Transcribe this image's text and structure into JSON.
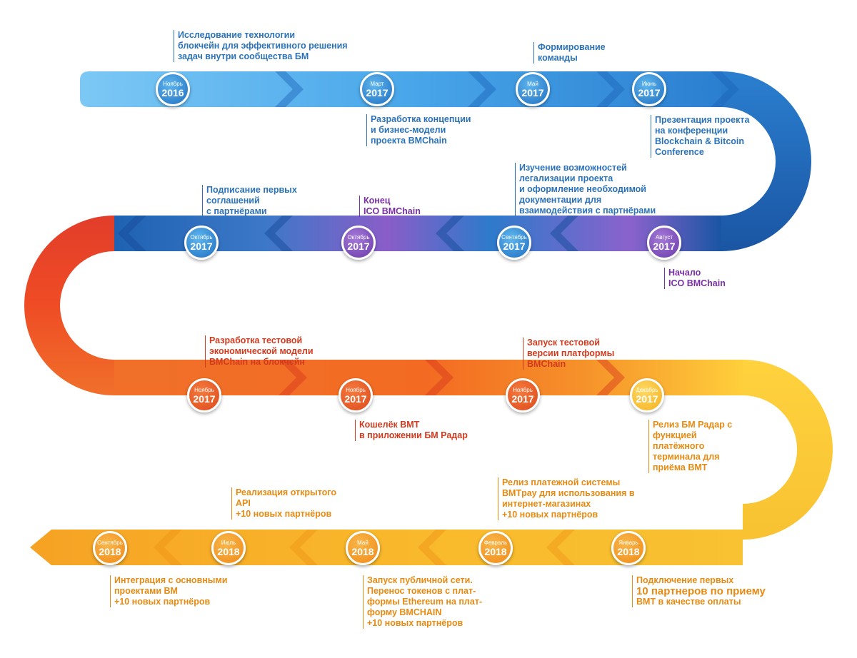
{
  "colors": {
    "blue": "#2b72b8",
    "purple": "#7b2fa6",
    "red": "#d23a1e",
    "orange": "#e78a12",
    "yellow": "#f7c63a"
  },
  "milestones": [
    {
      "month": "Ноябрь",
      "year": "2016"
    },
    {
      "month": "Март",
      "year": "2017"
    },
    {
      "month": "Май",
      "year": "2017"
    },
    {
      "month": "Июнь",
      "year": "2017"
    },
    {
      "month": "Август",
      "year": "2017"
    },
    {
      "month": "Сентябрь",
      "year": "2017"
    },
    {
      "month": "Октябрь",
      "year": "2017"
    },
    {
      "month": "Октябрь",
      "year": "2017"
    },
    {
      "month": "Ноябрь",
      "year": "2017"
    },
    {
      "month": "Ноябрь",
      "year": "2017"
    },
    {
      "month": "Ноябрь",
      "year": "2017"
    },
    {
      "month": "Декабрь",
      "year": "2017"
    },
    {
      "month": "Январь",
      "year": "2018"
    },
    {
      "month": "Февраль",
      "year": "2018"
    },
    {
      "month": "Май",
      "year": "2018"
    },
    {
      "month": "Июль",
      "year": "2018"
    },
    {
      "month": "Сентябрь",
      "year": "2018"
    }
  ],
  "annotations": [
    {
      "lines": [
        "Исследование технологии",
        "блокчейн для эффективного решения",
        "задач внутри сообщества БМ"
      ]
    },
    {
      "lines": [
        "Разработка концепции",
        "и бизнес-модели",
        "проекта BMChain"
      ]
    },
    {
      "lines": [
        "Формирование",
        "команды"
      ]
    },
    {
      "lines": [
        "Презентация проекта",
        "на конференции",
        "Blockchain & Bitcoin",
        "Conference"
      ]
    },
    {
      "lines": [
        "Начало",
        "ICO BMChain"
      ]
    },
    {
      "lines": [
        "Изучение возможностей",
        "легализации проекта",
        "и оформление необходимой",
        "документации для",
        "взаимодействия с партнёрами"
      ]
    },
    {
      "lines": [
        "Конец",
        "ICO BMChain"
      ]
    },
    {
      "lines": [
        "Подписание первых",
        "соглашений",
        "с партнёрами"
      ]
    },
    {
      "lines": [
        "Разработка тестовой",
        "экономической модели",
        "BMChain на блокчейн"
      ]
    },
    {
      "lines": [
        "Кошелёк BMT",
        "в приложении БМ Радар"
      ]
    },
    {
      "lines": [
        "Запуск тестовой",
        "версии платформы",
        "BMChain"
      ]
    },
    {
      "lines": [
        "Релиз БМ Радар с",
        "функцией",
        "платёжного",
        "терминала для",
        "приёма BMT"
      ]
    },
    {
      "lines": [
        "Подключение первых",
        "10 партнеров по приему",
        "BMT в качестве оплаты"
      ]
    },
    {
      "lines": [
        "Релиз платежной системы",
        "BMTpay для использования в",
        "интернет-магазинах",
        "+10 новых партнёров"
      ]
    },
    {
      "lines": [
        "Запуск публичной сети.",
        "Перенос токенов с плат-",
        "формы Ethereum на плат-",
        "форму BMCHAIN",
        "+10 новых партнёров"
      ]
    },
    {
      "lines": [
        "Реализация открытого",
        "API",
        "+10 новых партнёров"
      ]
    },
    {
      "lines": [
        "Интеграция с основными",
        "проектами BM",
        "+10 новых партнёров"
      ]
    }
  ]
}
